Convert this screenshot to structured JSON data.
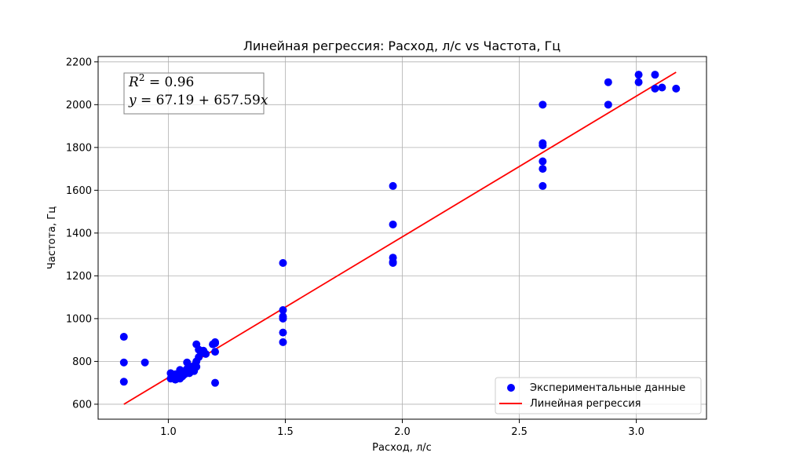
{
  "chart_data": {
    "type": "scatter",
    "title": "Линейная регрессия: Расход, л/с vs Частота, Гц",
    "xlabel": "Расход, л/с",
    "ylabel": "Частота, Гц",
    "xlim": [
      0.7,
      3.3
    ],
    "ylim": [
      530,
      2225
    ],
    "xticks": [
      1.0,
      1.5,
      2.0,
      2.5,
      3.0
    ],
    "xtick_labels": [
      "1.0",
      "1.5",
      "2.0",
      "2.5",
      "3.0"
    ],
    "yticks": [
      600,
      800,
      1000,
      1200,
      1400,
      1600,
      1800,
      2000,
      2200
    ],
    "ytick_labels": [
      "600",
      "800",
      "1000",
      "1200",
      "1400",
      "1600",
      "1800",
      "2000",
      "2200"
    ],
    "grid": true,
    "legend_position": "bottom-right",
    "annotation": {
      "r2_lhs": "R",
      "r2_sup": "2",
      "r2_rhs": " = 0.96",
      "eq_lhs": "y",
      "eq_mid": " = 67.19 + 657.59",
      "eq_var": "x"
    },
    "series": [
      {
        "name": "Экспериментальные данные",
        "kind": "scatter",
        "color": "#0000ff",
        "x": [
          0.81,
          0.81,
          0.81,
          0.9,
          1.01,
          1.01,
          1.02,
          1.03,
          1.03,
          1.04,
          1.04,
          1.05,
          1.05,
          1.05,
          1.06,
          1.06,
          1.07,
          1.07,
          1.08,
          1.08,
          1.08,
          1.09,
          1.09,
          1.1,
          1.1,
          1.11,
          1.11,
          1.11,
          1.12,
          1.12,
          1.12,
          1.13,
          1.13,
          1.14,
          1.15,
          1.16,
          1.19,
          1.2,
          1.2,
          1.2,
          1.2,
          1.49,
          1.49,
          1.49,
          1.49,
          1.49,
          1.49,
          1.96,
          1.96,
          1.96,
          1.96,
          1.96,
          2.6,
          2.6,
          2.6,
          2.6,
          2.6,
          2.6,
          2.88,
          2.88,
          3.01,
          3.01,
          3.08,
          3.08,
          3.11,
          3.17
        ],
        "y": [
          915,
          795,
          705,
          795,
          745,
          720,
          735,
          740,
          715,
          725,
          730,
          720,
          740,
          760,
          730,
          750,
          755,
          740,
          795,
          765,
          750,
          770,
          745,
          760,
          775,
          780,
          755,
          765,
          800,
          775,
          880,
          820,
          855,
          840,
          850,
          835,
          880,
          890,
          845,
          885,
          700,
          1260,
          1040,
          1010,
          935,
          890,
          1000,
          1620,
          1440,
          1285,
          1260,
          1265,
          2000,
          1820,
          1735,
          1700,
          1620,
          1810,
          2105,
          2000,
          2140,
          2105,
          2140,
          2075,
          2080,
          2075
        ]
      },
      {
        "name": "Линейная регрессия",
        "kind": "line",
        "color": "#ff0000",
        "x": [
          0.81,
          3.17
        ],
        "y": [
          599.8,
          2151.7
        ]
      }
    ]
  }
}
